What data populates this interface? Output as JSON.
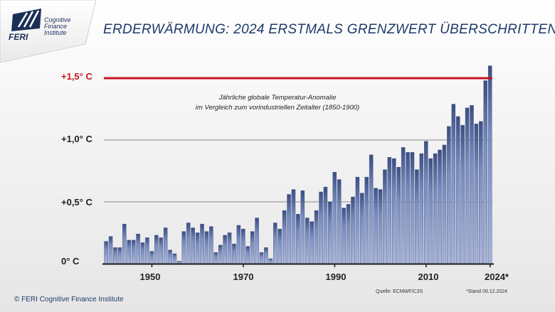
{
  "logo": {
    "brand": "FERI",
    "line1": "Cognitive",
    "line2": "Finance",
    "line3": "Institute"
  },
  "title": "ERDERWÄRMUNG: 2024 ERSTMALS GRENZWERT ÜBERSCHRITTEN",
  "annotation": {
    "line1": "Jährliche globale Temperatur-Anomalie",
    "line2": "im Vergleich zum vorindustriellen Zeitalter (1850-1900)"
  },
  "source": "Quelle: ECMWF/C3S",
  "stand": "*Stand 09.12.2024",
  "copyright": "© FERI Cognitive Finance Institute",
  "colors": {
    "bar": "#7a8dbf",
    "bar_dark": "#3b4d82",
    "threshold": "#c8141e",
    "gridline": "#8a8a8a"
  },
  "chart_data": {
    "type": "bar",
    "y_tick_labels": [
      "0° C",
      "+0,5° C",
      "+1,0° C",
      "+1,5° C"
    ],
    "y_ticks": [
      0,
      0.5,
      1.0,
      1.5
    ],
    "x_tick_labels": [
      "1950",
      "1970",
      "1990",
      "2010",
      "2024*"
    ],
    "x_ticks": [
      1950,
      1970,
      1990,
      2010,
      2024
    ],
    "ylim": [
      0,
      1.6
    ],
    "xlim": [
      1940,
      2024
    ],
    "threshold": 1.5,
    "grid": true,
    "x": [
      1940,
      1941,
      1942,
      1943,
      1944,
      1945,
      1946,
      1947,
      1948,
      1949,
      1950,
      1951,
      1952,
      1953,
      1954,
      1955,
      1956,
      1957,
      1958,
      1959,
      1960,
      1961,
      1962,
      1963,
      1964,
      1965,
      1966,
      1967,
      1968,
      1969,
      1970,
      1971,
      1972,
      1973,
      1974,
      1975,
      1976,
      1977,
      1978,
      1979,
      1980,
      1981,
      1982,
      1983,
      1984,
      1985,
      1986,
      1987,
      1988,
      1989,
      1990,
      1991,
      1992,
      1993,
      1994,
      1995,
      1996,
      1997,
      1998,
      1999,
      2000,
      2001,
      2002,
      2003,
      2004,
      2005,
      2006,
      2007,
      2008,
      2009,
      2010,
      2011,
      2012,
      2013,
      2014,
      2015,
      2016,
      2017,
      2018,
      2019,
      2020,
      2021,
      2022,
      2023,
      2024
    ],
    "values": [
      0.18,
      0.22,
      0.13,
      0.13,
      0.32,
      0.19,
      0.19,
      0.24,
      0.17,
      0.21,
      0.1,
      0.23,
      0.21,
      0.29,
      0.11,
      0.08,
      0.02,
      0.26,
      0.33,
      0.29,
      0.25,
      0.32,
      0.26,
      0.3,
      0.09,
      0.15,
      0.23,
      0.25,
      0.16,
      0.31,
      0.28,
      0.14,
      0.26,
      0.37,
      0.09,
      0.13,
      0.04,
      0.33,
      0.28,
      0.43,
      0.56,
      0.6,
      0.4,
      0.59,
      0.37,
      0.34,
      0.43,
      0.58,
      0.62,
      0.5,
      0.74,
      0.68,
      0.45,
      0.48,
      0.54,
      0.7,
      0.57,
      0.7,
      0.88,
      0.61,
      0.6,
      0.76,
      0.86,
      0.85,
      0.78,
      0.94,
      0.9,
      0.9,
      0.76,
      0.89,
      0.99,
      0.85,
      0.89,
      0.92,
      0.96,
      1.11,
      1.29,
      1.19,
      1.12,
      1.26,
      1.28,
      1.13,
      1.15,
      1.48,
      1.6
    ]
  }
}
